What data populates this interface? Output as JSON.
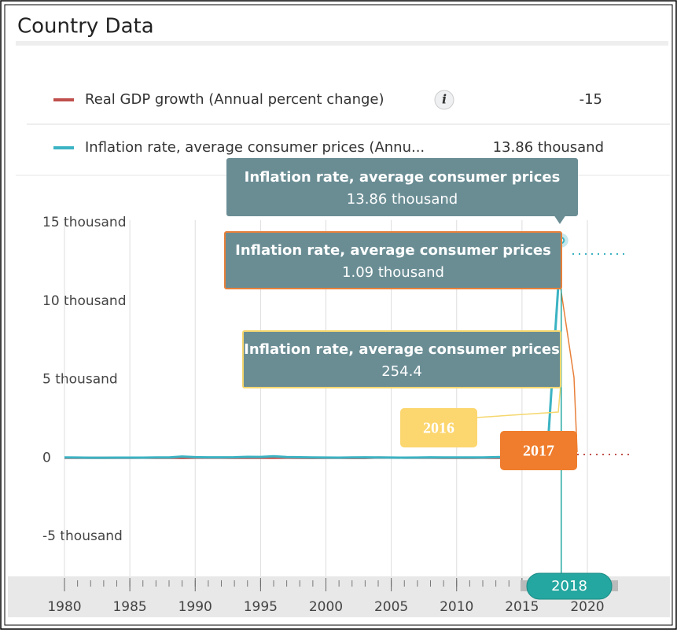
{
  "header": {
    "title": "Country Data"
  },
  "chart_data": {
    "type": "line",
    "x": [
      1980,
      1981,
      1982,
      1983,
      1984,
      1985,
      1986,
      1987,
      1988,
      1989,
      1990,
      1991,
      1992,
      1993,
      1994,
      1995,
      1996,
      1997,
      1998,
      1999,
      2000,
      2001,
      2002,
      2003,
      2004,
      2005,
      2006,
      2007,
      2008,
      2009,
      2010,
      2011,
      2012,
      2013,
      2014,
      2015,
      2016,
      2017,
      2018
    ],
    "series": [
      {
        "name": "Real GDP growth (Annual percent change)",
        "color": "#c0504d",
        "values": [
          -4.4,
          -0.3,
          -2.1,
          -3.8,
          1.4,
          0.2,
          6.5,
          3.6,
          5.8,
          -8.6,
          6.5,
          9.7,
          6.1,
          0.3,
          -2.3,
          4,
          -0.2,
          6.4,
          0.3,
          -6,
          3.7,
          3.4,
          -8.9,
          -7.8,
          18.3,
          10.3,
          9.9,
          8.8,
          5.3,
          -3.2,
          -1.5,
          4.2,
          5.6,
          1.3,
          -3.9,
          -6.2,
          -16.5,
          -14,
          -15
        ]
      },
      {
        "name": "Inflation rate, average consumer prices (Annu...",
        "color": "#3bb3c3",
        "values": [
          21.5,
          16.2,
          9.6,
          6.2,
          12.2,
          11.4,
          11.5,
          28.1,
          29.5,
          84.5,
          40.7,
          34.2,
          31.4,
          38.1,
          60.8,
          59.9,
          99.9,
          50,
          35.8,
          23.6,
          16.2,
          12.5,
          22.4,
          31.1,
          21.7,
          16,
          13.7,
          18.7,
          31.4,
          26,
          28.2,
          26.1,
          21.1,
          40.6,
          62.2,
          121.7,
          254.4,
          1087.5,
          13864.6
        ],
        "value_labels": [
          null,
          null,
          null,
          null,
          null,
          null,
          null,
          null,
          null,
          null,
          null,
          null,
          null,
          null,
          null,
          null,
          null,
          null,
          null,
          null,
          null,
          null,
          null,
          null,
          null,
          null,
          null,
          null,
          null,
          null,
          null,
          null,
          null,
          null,
          null,
          null,
          "254.4",
          "1.09 thousand",
          "13.86 thousand"
        ]
      }
    ],
    "tooltip_title": "Inflation rate, average consumer prices",
    "info_icon": "i",
    "annotations": [
      "2016",
      "2017"
    ],
    "selected": "2018",
    "xlim": [
      1980,
      2020
    ],
    "xticks": [
      1980,
      1985,
      1990,
      1995,
      2000,
      2005,
      2010,
      2015,
      2020
    ],
    "ylim": [
      -5000,
      15000
    ],
    "yticks": [
      {
        "value": -5000,
        "label": "-5 thousand"
      },
      0,
      {
        "value": 5000,
        "label": "5 thousand"
      },
      {
        "value": 10000,
        "label": "10 thousand"
      },
      {
        "value": 15000,
        "label": "15 thousand"
      }
    ],
    "grid": true
  }
}
